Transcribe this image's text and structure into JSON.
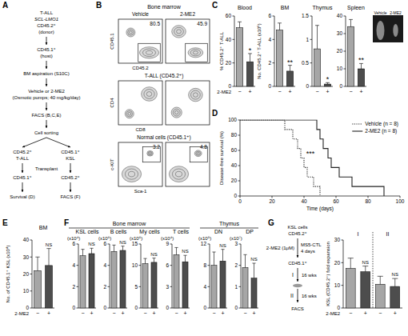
{
  "panel_letters": [
    "A",
    "B",
    "C",
    "D",
    "E",
    "F",
    "G"
  ],
  "diagram_a": {
    "center": [
      [
        "T-ALL",
        "SCL-LMO1",
        "CD45.2⁺",
        "(donor)"
      ],
      [
        "CD45.1⁺",
        "(host)"
      ],
      [
        "BM aspiration (S10C)"
      ],
      [
        "Vehicle or 2-ME2",
        "(Osmotic pumps; 40 mg/kg/day)"
      ],
      [
        "FACS (B,C,E)"
      ],
      [
        "Cell sorting"
      ]
    ],
    "left": [
      [
        "CD45.2⁺",
        "T-ALL"
      ],
      [
        "CD45.1⁺"
      ],
      [
        "Survival (D)"
      ]
    ],
    "right": [
      [
        "CD45.1⁺",
        "KSL"
      ],
      [
        "CD45.2⁺"
      ],
      [
        "FACS (F)"
      ]
    ],
    "transplant": "Transplant"
  },
  "flow_b": {
    "title": "Bone marrow",
    "columns": [
      "Vehicle",
      "2-ME2"
    ],
    "rows": [
      {
        "y_axis": "CD45.1",
        "x_axis": "CD45.2",
        "values": [
          80.5,
          45.9
        ]
      },
      {
        "label": "T-ALL (CD45.2⁺)",
        "y_axis": "CD4",
        "x_axis": "CD8"
      },
      {
        "label": "Normal cells (CD45.1⁺)",
        "y_axis": "c-KIT",
        "x_axis": "Sca-1",
        "values": [
          3.2,
          4.8
        ]
      }
    ]
  },
  "diagram_g": {
    "start": [
      "KSL cells",
      "CD45.2⁺"
    ],
    "treatment": "2-ME2 (1μM)",
    "culture": [
      "MS5-CTL",
      "4 days"
    ],
    "host": "CD45.1⁺",
    "transplants": [
      {
        "label": "I",
        "interval": "16 wks"
      },
      {
        "label": "II",
        "interval": "16 wks"
      }
    ],
    "end": "FACS"
  },
  "chart_data": [
    {
      "type": "bar",
      "title": "Blood",
      "ylabel": "% CD45.2⁺ T-ALL",
      "xlabel": "2-ME2",
      "categories": [
        "−",
        "+"
      ],
      "values": [
        50,
        21
      ],
      "errors": [
        5,
        7
      ],
      "annotations": [
        null,
        "*"
      ],
      "colors": [
        "#a6a6a6",
        "#4d4d4d"
      ],
      "ylim": [
        0,
        60
      ],
      "yticks": [
        0,
        20,
        40,
        60
      ]
    },
    {
      "type": "bar",
      "title": "BM",
      "ylabel": "No. CD45.2⁺ T-ALL (x10⁶)",
      "categories": [
        "−",
        "+"
      ],
      "values": [
        4.8,
        1.3
      ],
      "errors": [
        0.6,
        0.5
      ],
      "annotations": [
        null,
        "**"
      ],
      "colors": [
        "#a6a6a6",
        "#4d4d4d"
      ],
      "ylim": [
        0,
        6
      ],
      "yticks": [
        0,
        2,
        4,
        6
      ]
    },
    {
      "type": "bar",
      "title": "Thymus",
      "categories": [
        "−",
        "+"
      ],
      "values": [
        0.8,
        0.05
      ],
      "errors": [
        0.5,
        0.03
      ],
      "annotations": [
        null,
        "*"
      ],
      "colors": [
        "#a6a6a6",
        "#4d4d4d"
      ],
      "ylim": [
        0,
        1.5
      ],
      "yticks": [
        0,
        0.5,
        1,
        1.5
      ]
    },
    {
      "type": "bar",
      "title": "Spleen",
      "categories": [
        "−",
        "+"
      ],
      "values": [
        34,
        10
      ],
      "errors": [
        4,
        3
      ],
      "annotations": [
        null,
        "**"
      ],
      "colors": [
        "#a6a6a6",
        "#4d4d4d"
      ],
      "ylim": [
        0,
        40
      ],
      "yticks": [
        0,
        10,
        20,
        30,
        40
      ],
      "inset_labels": [
        "Vehicle",
        "2-ME2"
      ]
    },
    {
      "type": "line",
      "xlabel": "Time (days)",
      "ylabel": "Disease-free survival (%)",
      "annotation": "***",
      "grid": false,
      "legend": "upper right",
      "xlim": [
        0,
        100
      ],
      "xticks": [
        0,
        20,
        40,
        60,
        80,
        100
      ],
      "ylim": [
        0,
        100
      ],
      "yticks": [
        0,
        20,
        40,
        60,
        80,
        100
      ],
      "series": [
        {
          "name": "Vehicle (n = 8)",
          "color": "#222222",
          "line_style": "dotted",
          "x": [
            0,
            28,
            28,
            33,
            33,
            36,
            36,
            38,
            38,
            40,
            40,
            42,
            42,
            46,
            46,
            50,
            50
          ],
          "values": [
            100,
            100,
            87.5,
            87.5,
            75,
            75,
            62.5,
            62.5,
            50,
            50,
            37.5,
            37.5,
            25,
            25,
            12.5,
            12.5,
            0
          ]
        },
        {
          "name": "2-ME2 (n = 8)",
          "color": "#222222",
          "line_style": "solid",
          "x": [
            0,
            48,
            48,
            50,
            50,
            52,
            52,
            55,
            55,
            57,
            57,
            62,
            62,
            70,
            70,
            90,
            90
          ],
          "values": [
            100,
            100,
            87.5,
            87.5,
            75,
            75,
            62.5,
            62.5,
            50,
            50,
            37.5,
            37.5,
            25,
            25,
            12.5,
            12.5,
            0
          ]
        }
      ]
    },
    {
      "type": "bar",
      "title": "BM",
      "ylabel": "No. of CD45.1⁺ KSL (x10⁴)",
      "xlabel": "2-ME2",
      "categories": [
        "−",
        "+"
      ],
      "values": [
        22,
        25
      ],
      "errors": [
        8,
        10
      ],
      "annotations": [
        null,
        "NS"
      ],
      "colors": [
        "#a6a6a6",
        "#4d4d4d"
      ],
      "ylim": [
        0,
        40
      ],
      "yticks": [
        0,
        10,
        20,
        30,
        40
      ]
    },
    {
      "type": "bar",
      "group": "Bone marrow",
      "title": "KSL cells",
      "y_unit": "(x10⁴)",
      "categories": [
        "−",
        "+"
      ],
      "values": [
        4.9,
        5.1
      ],
      "errors": [
        0.6,
        0.5
      ],
      "annotations": [
        null,
        "NS"
      ],
      "colors": [
        "#a6a6a6",
        "#4d4d4d"
      ],
      "ylim": [
        0,
        6
      ],
      "yticks": [
        0,
        2,
        4,
        6
      ]
    },
    {
      "type": "bar",
      "group": "Bone marrow",
      "title": "B cells",
      "y_unit": "(x10⁶)",
      "categories": [
        "−",
        "+"
      ],
      "values": [
        5.3,
        5.4
      ],
      "errors": [
        0.6,
        0.4
      ],
      "annotations": [
        null,
        "NS"
      ],
      "colors": [
        "#a6a6a6",
        "#4d4d4d"
      ],
      "ylim": [
        0,
        6
      ],
      "yticks": [
        0,
        2,
        4,
        6
      ]
    },
    {
      "type": "bar",
      "group": "Bone marrow",
      "title": "My cells",
      "y_unit": "(x10⁶)",
      "categories": [
        "−",
        "+"
      ],
      "values": [
        10.4,
        10.7
      ],
      "errors": [
        1.2,
        1
      ],
      "annotations": [
        null,
        "NS"
      ],
      "colors": [
        "#a6a6a6",
        "#4d4d4d"
      ],
      "ylim": [
        0,
        15
      ],
      "yticks": [
        0,
        5,
        10,
        15
      ]
    },
    {
      "type": "bar",
      "group": "Bone marrow",
      "title": "T cells",
      "y_unit": "(x10⁴)",
      "categories": [
        "−",
        "+"
      ],
      "values": [
        7.5,
        6.5
      ],
      "errors": [
        1,
        0.9
      ],
      "annotations": [
        null,
        "NS"
      ],
      "colors": [
        "#a6a6a6",
        "#4d4d4d"
      ],
      "ylim": [
        0,
        9
      ],
      "yticks": [
        0,
        3,
        6,
        9
      ]
    },
    {
      "type": "bar",
      "group": "Thymus",
      "title": "DN",
      "y_unit": "(x10⁵)",
      "categories": [
        "−",
        "+"
      ],
      "values": [
        8,
        8.8
      ],
      "errors": [
        2.5,
        2.2
      ],
      "annotations": [
        null,
        "NS"
      ],
      "colors": [
        "#a6a6a6",
        "#4d4d4d"
      ],
      "ylim": [
        0,
        12
      ],
      "yticks": [
        0,
        4,
        8,
        12
      ]
    },
    {
      "type": "bar",
      "group": "Thymus",
      "title": "DP",
      "y_unit": "(x10⁷)",
      "categories": [
        "−",
        "+"
      ],
      "values": [
        1.9,
        1.4
      ],
      "errors": [
        0.6,
        0.7
      ],
      "annotations": [
        null,
        "NS"
      ],
      "colors": [
        "#a6a6a6",
        "#4d4d4d"
      ],
      "ylim": [
        0,
        3
      ],
      "yticks": [
        0,
        1,
        2,
        3
      ]
    },
    {
      "type": "bar",
      "ylabel": "KSL (CD45.2⁺) fold expansion",
      "xlabel": "2-ME2",
      "categories": [
        "−",
        "+",
        "−",
        "+"
      ],
      "groups": [
        "I",
        "II"
      ],
      "values": [
        17.5,
        16,
        10.5,
        9.5
      ],
      "errors": [
        4.5,
        2.5,
        3.5,
        3.5
      ],
      "annotations": [
        null,
        "NS",
        null,
        "NS"
      ],
      "colors": [
        "#a6a6a6",
        "#4d4d4d",
        "#a6a6a6",
        "#4d4d4d"
      ],
      "ylim": [
        0,
        30
      ],
      "yticks": [
        0,
        10,
        20,
        30
      ]
    }
  ]
}
